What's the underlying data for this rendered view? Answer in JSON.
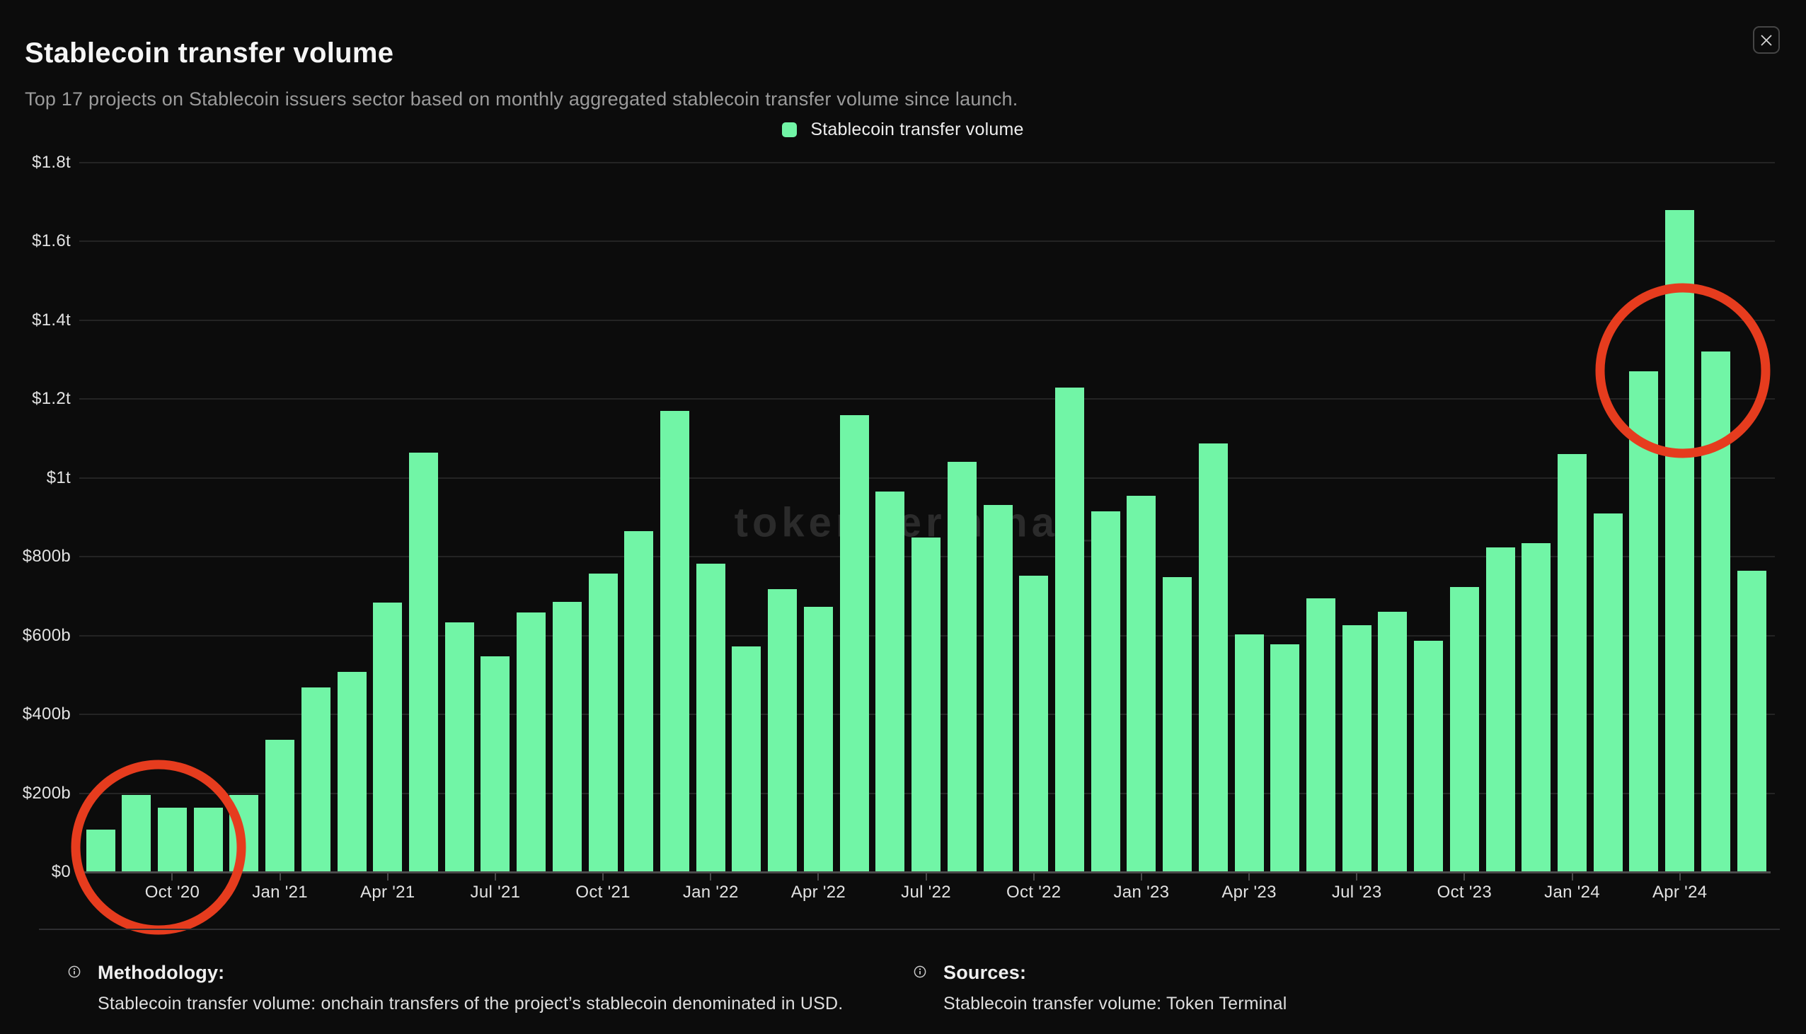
{
  "header": {
    "title": "Stablecoin transfer volume",
    "subtitle": "Top 17 projects on Stablecoin issuers sector based on monthly aggregated stablecoin transfer volume since launch."
  },
  "legend": {
    "label": "Stablecoin transfer volume"
  },
  "watermark": {
    "text": "token terminal_"
  },
  "colors": {
    "accent_green": "#71F5A6",
    "annotation_red": "#E63C1E",
    "background": "#0C0C0C"
  },
  "chart_data": {
    "type": "bar",
    "title": "Stablecoin transfer volume",
    "series_name": "Stablecoin transfer volume",
    "unit": "USD billions",
    "ylim": [
      0,
      1800
    ],
    "grid": true,
    "legend_position": "top-center",
    "x": [
      "Aug '20",
      "Sep '20",
      "Oct '20",
      "Nov '20",
      "Dec '20",
      "Jan '21",
      "Feb '21",
      "Mar '21",
      "Apr '21",
      "May '21",
      "Jun '21",
      "Jul '21",
      "Aug '21",
      "Sep '21",
      "Oct '21",
      "Nov '21",
      "Dec '21",
      "Jan '22",
      "Feb '22",
      "Mar '22",
      "Apr '22",
      "May '22",
      "Jun '22",
      "Jul '22",
      "Aug '22",
      "Sep '22",
      "Oct '22",
      "Nov '22",
      "Dec '22",
      "Jan '23",
      "Feb '23",
      "Mar '23",
      "Apr '23",
      "May '23",
      "Jun '23",
      "Jul '23",
      "Aug '23",
      "Sep '23",
      "Oct '23",
      "Nov '23",
      "Dec '23",
      "Jan '24",
      "Feb '24",
      "Mar '24",
      "Apr '24",
      "May '24",
      "Jun '24"
    ],
    "values": [
      108,
      196,
      163,
      163,
      196,
      336,
      468,
      508,
      684,
      1065,
      633,
      548,
      658,
      685,
      757,
      865,
      1170,
      782,
      572,
      718,
      673,
      1160,
      965,
      848,
      1040,
      932,
      752,
      1230,
      916,
      954,
      748,
      1087,
      603,
      577,
      695,
      626,
      661,
      587,
      723,
      823,
      835,
      1060,
      910,
      1270,
      1680,
      1320,
      765
    ],
    "y_tick_labels": [
      "$0",
      "$200b",
      "$400b",
      "$600b",
      "$800b",
      "$1t",
      "$1.2t",
      "$1.4t",
      "$1.6t",
      "$1.8t"
    ],
    "x_tick_labels": [
      "Oct '20",
      "Jan '21",
      "Apr '21",
      "Jul '21",
      "Oct '21",
      "Jan '22",
      "Apr '22",
      "Jul '22",
      "Oct '22",
      "Jan '23",
      "Apr '23",
      "Jul '23",
      "Oct '23",
      "Jan '24",
      "Apr '24"
    ],
    "x_tick_indices": [
      2,
      5,
      8,
      11,
      14,
      17,
      20,
      23,
      26,
      29,
      32,
      35,
      38,
      41,
      44
    ]
  },
  "annotations": [
    {
      "shape": "circle",
      "around": "Aug–Nov 2020 launch period bars"
    },
    {
      "shape": "circle",
      "around": "Mar–May 2024 peak bars"
    }
  ],
  "footer": {
    "methodology": {
      "heading": "Methodology:",
      "body": "Stablecoin transfer volume: onchain transfers of the project’s stablecoin denominated in USD."
    },
    "sources": {
      "heading": "Sources:",
      "body": "Stablecoin transfer volume: Token Terminal"
    }
  }
}
